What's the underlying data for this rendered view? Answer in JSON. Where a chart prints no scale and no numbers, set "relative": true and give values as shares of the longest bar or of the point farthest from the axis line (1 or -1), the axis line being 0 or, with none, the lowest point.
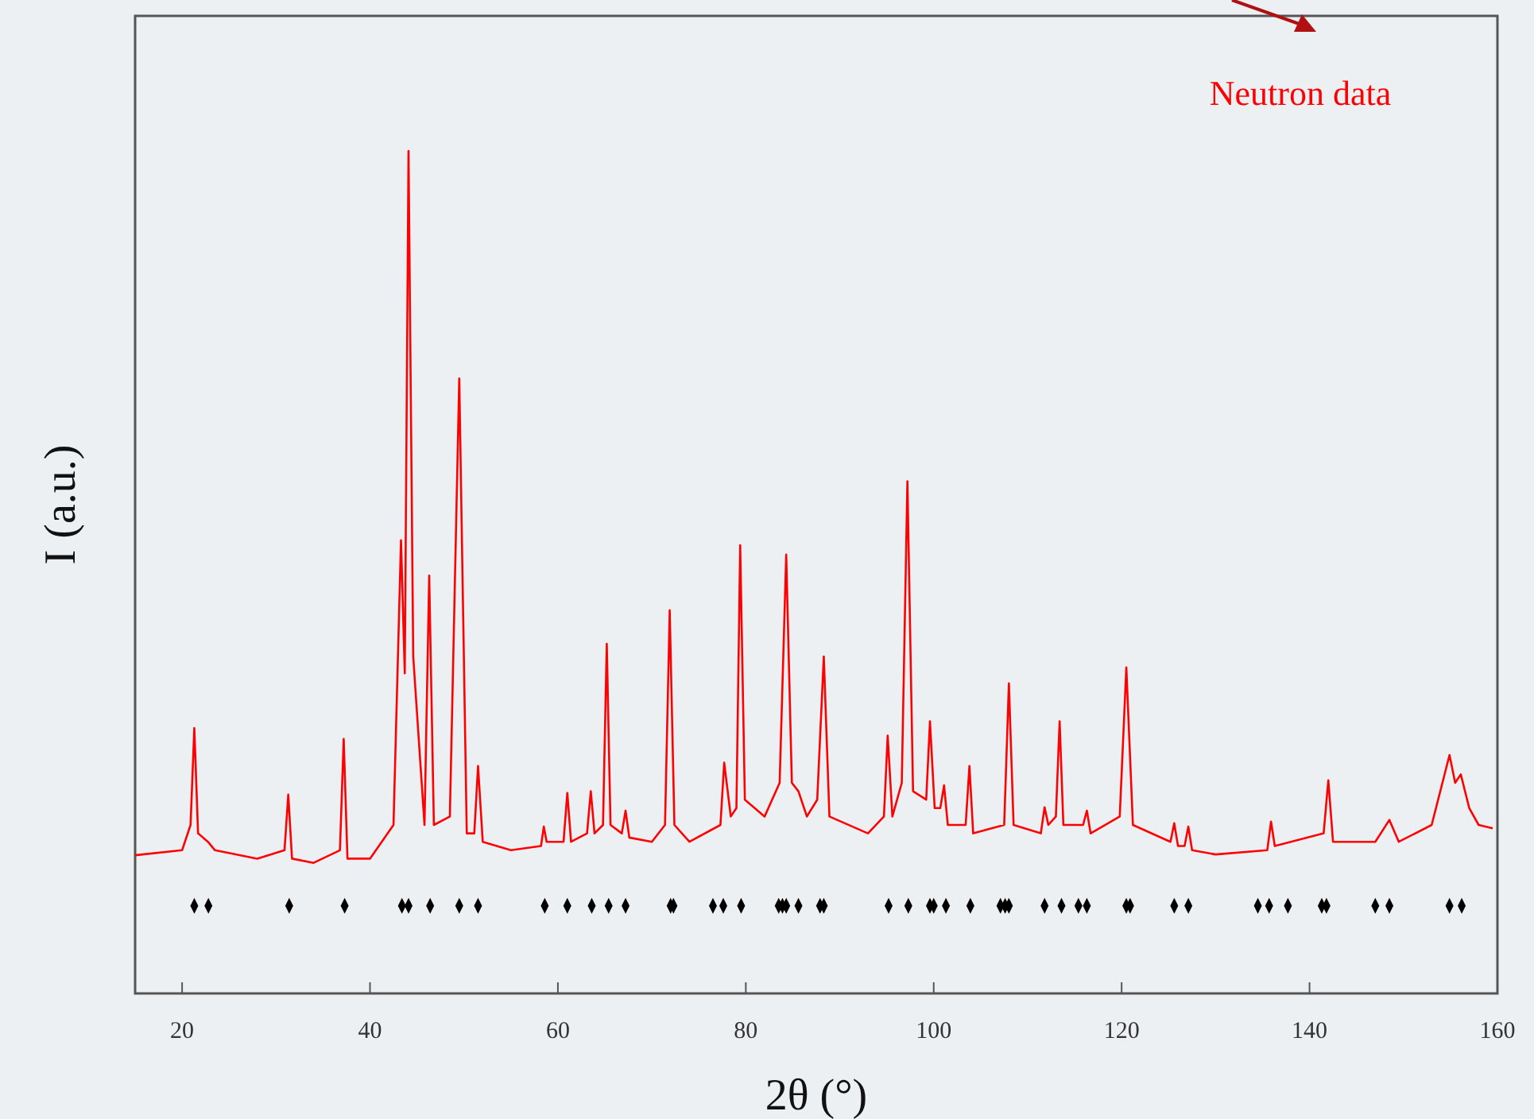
{
  "chart_data": {
    "type": "line",
    "relative": true,
    "xlabel": "2θ (°)",
    "ylabel": "I (a.u.)",
    "annotations": [
      "Neutron data"
    ],
    "xlim": [
      15,
      160
    ],
    "xticks": [
      20,
      40,
      60,
      80,
      100,
      120,
      140,
      160
    ],
    "grid": false,
    "series": [
      {
        "color": "#ff0000",
        "x": [
          15,
          20,
          20.9,
          21.3,
          21.7,
          22.75,
          23.5,
          28,
          30.9,
          31.3,
          31.7,
          34,
          36.8,
          37.2,
          37.6,
          40,
          42.5,
          43.3,
          43.7,
          44.1,
          44.6,
          45.8,
          46.3,
          46.8,
          48.5,
          49.5,
          50.3,
          51.1,
          51.5,
          52,
          55,
          58.2,
          58.5,
          58.8,
          60.6,
          61,
          61.4,
          63.1,
          63.5,
          63.9,
          64.8,
          65.2,
          65.6,
          66.8,
          67.2,
          67.6,
          70,
          71.4,
          71.9,
          72.4,
          74,
          77.3,
          77.7,
          78.4,
          79,
          79.4,
          79.9,
          82,
          83.6,
          84.3,
          84.9,
          85.6,
          86.5,
          87.6,
          88.3,
          88.9,
          93,
          94.7,
          95.1,
          95.6,
          96.6,
          97.2,
          97.8,
          99.2,
          99.6,
          100.1,
          100.7,
          101.1,
          101.5,
          103.4,
          103.8,
          104.2,
          107.5,
          108,
          108.5,
          111.4,
          111.8,
          112.2,
          113,
          113.4,
          113.8,
          115.9,
          116.3,
          116.7,
          119.8,
          120.5,
          121.2,
          125.2,
          125.6,
          126,
          126.7,
          127.1,
          127.5,
          130,
          135.5,
          135.9,
          136.3,
          141.5,
          142,
          142.5,
          147,
          148.5,
          149.5,
          153,
          154.9,
          155.5,
          156.1,
          157,
          158,
          159.5
        ],
        "values": [
          0.164,
          0.17,
          0.2,
          0.315,
          0.19,
          0.18,
          0.17,
          0.16,
          0.17,
          0.236,
          0.16,
          0.155,
          0.17,
          0.302,
          0.16,
          0.16,
          0.2,
          0.538,
          0.38,
          1,
          0.4,
          0.2,
          0.496,
          0.2,
          0.21,
          0.73,
          0.19,
          0.19,
          0.27,
          0.18,
          0.17,
          0.175,
          0.198,
          0.18,
          0.18,
          0.238,
          0.18,
          0.19,
          0.24,
          0.19,
          0.2,
          0.415,
          0.2,
          0.19,
          0.217,
          0.185,
          0.18,
          0.2,
          0.455,
          0.2,
          0.18,
          0.2,
          0.274,
          0.21,
          0.22,
          0.532,
          0.23,
          0.21,
          0.25,
          0.521,
          0.25,
          0.24,
          0.21,
          0.23,
          0.4,
          0.21,
          0.19,
          0.21,
          0.306,
          0.21,
          0.25,
          0.608,
          0.24,
          0.23,
          0.323,
          0.22,
          0.22,
          0.247,
          0.2,
          0.2,
          0.27,
          0.19,
          0.2,
          0.368,
          0.2,
          0.19,
          0.221,
          0.2,
          0.21,
          0.323,
          0.2,
          0.2,
          0.217,
          0.19,
          0.21,
          0.387,
          0.2,
          0.18,
          0.202,
          0.175,
          0.175,
          0.198,
          0.17,
          0.165,
          0.17,
          0.204,
          0.175,
          0.19,
          0.253,
          0.18,
          0.18,
          0.206,
          0.18,
          0.2,
          0.283,
          0.25,
          0.26,
          0.22,
          0.2,
          0.196
        ]
      },
      {
        "type": "scatter",
        "marker": "diamond",
        "color": "#000000",
        "x": [
          21.3,
          22.8,
          31.4,
          37.3,
          43.4,
          44.1,
          46.4,
          49.5,
          51.5,
          58.6,
          61.0,
          63.6,
          65.4,
          67.2,
          72.0,
          72.3,
          76.5,
          77.6,
          79.5,
          83.5,
          83.9,
          84.3,
          85.6,
          87.9,
          88.3,
          95.2,
          97.3,
          99.6,
          100.0,
          101.3,
          103.9,
          107.1,
          107.6,
          108.0,
          111.8,
          113.6,
          115.4,
          116.3,
          120.5,
          120.9,
          125.6,
          127.1,
          134.5,
          135.7,
          137.7,
          141.3,
          141.8,
          147.0,
          148.5,
          154.9,
          156.2
        ],
        "values": [
          0.104,
          0.104,
          0.104,
          0.104,
          0.104,
          0.104,
          0.104,
          0.104,
          0.104,
          0.104,
          0.104,
          0.104,
          0.104,
          0.104,
          0.104,
          0.104,
          0.104,
          0.104,
          0.104,
          0.104,
          0.104,
          0.104,
          0.104,
          0.104,
          0.104,
          0.104,
          0.104,
          0.104,
          0.104,
          0.104,
          0.104,
          0.104,
          0.104,
          0.104,
          0.104,
          0.104,
          0.104,
          0.104,
          0.104,
          0.104,
          0.104,
          0.104,
          0.104,
          0.104,
          0.104,
          0.104,
          0.104,
          0.104,
          0.104,
          0.104,
          0.104
        ]
      }
    ]
  }
}
